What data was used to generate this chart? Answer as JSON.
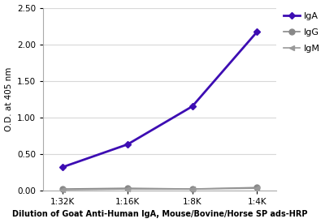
{
  "x_labels": [
    "1:32K",
    "1:16K",
    "1:8K",
    "1:4K"
  ],
  "x_values": [
    0,
    1,
    2,
    3
  ],
  "series": [
    {
      "name": "IgA",
      "values": [
        0.32,
        0.63,
        1.15,
        2.17
      ],
      "color": "#3d0db3",
      "marker": "D",
      "markersize": 4,
      "linewidth": 2.0
    },
    {
      "name": "IgG",
      "values": [
        0.02,
        0.03,
        0.02,
        0.04
      ],
      "color": "#888888",
      "marker": "o",
      "markersize": 5,
      "linewidth": 1.2
    },
    {
      "name": "IgM",
      "values": [
        0.01,
        0.02,
        0.02,
        0.03
      ],
      "color": "#999999",
      "marker": "<",
      "markersize": 5,
      "linewidth": 1.2
    }
  ],
  "ylabel": "O.D. at 405 nm",
  "xlabel": "Dilution of Goat Anti-Human IgA, Mouse/Bovine/Horse SP ads-HRP",
  "ylim": [
    0.0,
    2.5
  ],
  "yticks": [
    0.0,
    0.5,
    1.0,
    1.5,
    2.0,
    2.5
  ],
  "background_color": "#ffffff",
  "grid_color": "#d8d8d8",
  "xlabel_fontsize": 7.0,
  "ylabel_fontsize": 7.5,
  "tick_fontsize": 7.5,
  "legend_fontsize": 8
}
